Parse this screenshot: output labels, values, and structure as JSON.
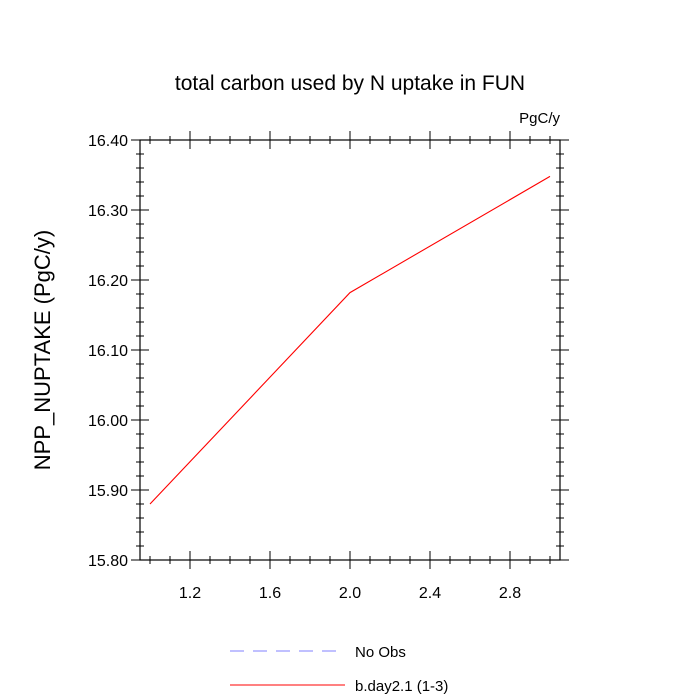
{
  "chart_data": {
    "type": "line",
    "title": "total carbon used by N uptake in FUN",
    "units_label": "PgC/y",
    "xlabel": "",
    "ylabel": "NPP_NUPTAKE  (PgC/y)",
    "xlim": [
      0.95,
      3.05
    ],
    "ylim": [
      15.8,
      16.4
    ],
    "x_ticks": [
      1.2,
      1.6,
      2.0,
      2.4,
      2.8
    ],
    "x_tick_labels": [
      "1.2",
      "1.6",
      "2.0",
      "2.4",
      "2.8"
    ],
    "y_ticks": [
      15.8,
      15.9,
      16.0,
      16.1,
      16.2,
      16.3,
      16.4
    ],
    "y_tick_labels": [
      "15.80",
      "15.90",
      "16.00",
      "16.10",
      "16.20",
      "16.30",
      "16.40"
    ],
    "grid": false,
    "legend_position": "bottom-center",
    "series": [
      {
        "name": "No Obs",
        "color": "#8080ff",
        "dash": "dashed",
        "x": [],
        "y": []
      },
      {
        "name": "b.day2.1 (1-3)",
        "color": "#ff0000",
        "dash": "solid",
        "x": [
          1,
          2,
          3
        ],
        "y": [
          15.88,
          16.182,
          16.348
        ]
      }
    ]
  }
}
